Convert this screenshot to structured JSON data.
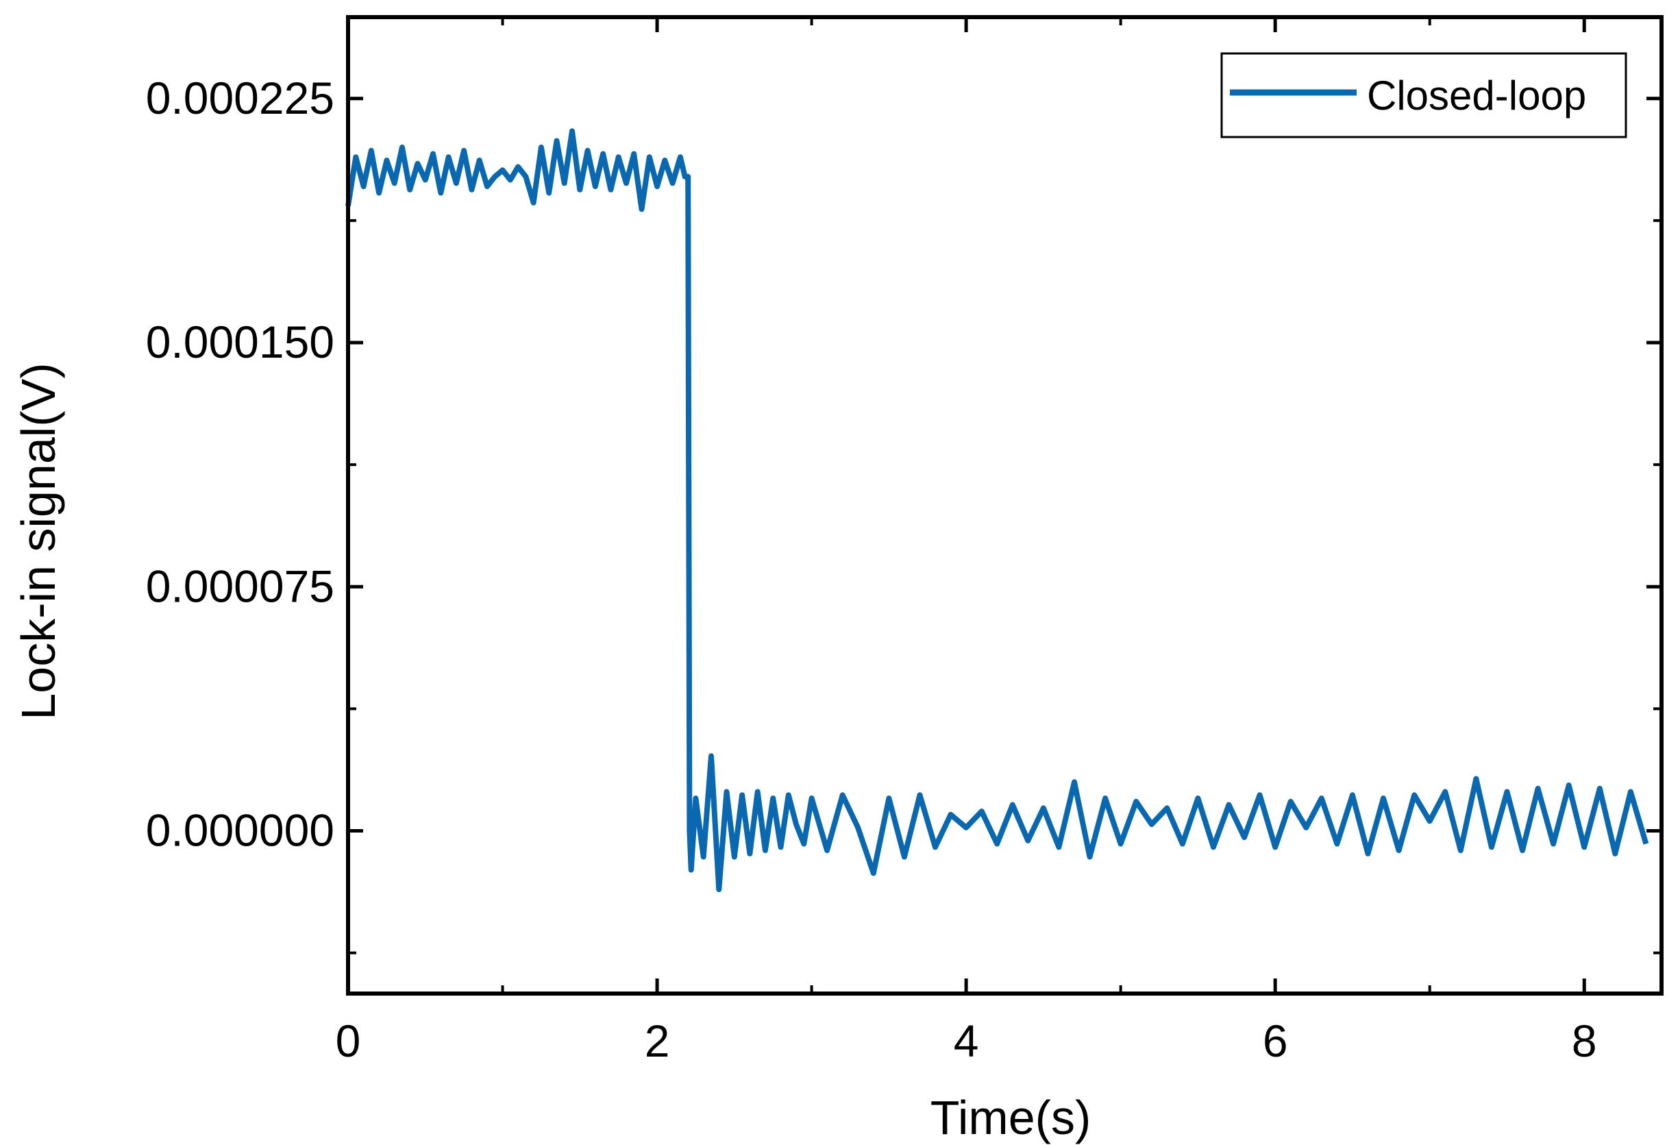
{
  "chart_data": {
    "type": "line",
    "xlabel": "Time(s)",
    "ylabel": "Lock-in signal(V)",
    "xlim": [
      0,
      8.5
    ],
    "ylim": [
      -5e-05,
      0.00025
    ],
    "x_ticks": [
      0,
      2,
      4,
      6,
      8
    ],
    "x_tick_labels": [
      "0",
      "2",
      "4",
      "6",
      "8"
    ],
    "y_ticks": [
      0.0,
      7.5e-05,
      0.00015,
      0.000225
    ],
    "y_tick_labels": [
      "0.000000",
      "0.000075",
      "0.000150",
      "0.000225"
    ],
    "grid": false,
    "legend_position": "top-right",
    "series": [
      {
        "name": "Closed-loop",
        "color": "#0a68b0",
        "x": [
          0,
          0.05,
          0.1,
          0.15,
          0.2,
          0.25,
          0.3,
          0.35,
          0.4,
          0.45,
          0.5,
          0.55,
          0.6,
          0.65,
          0.7,
          0.75,
          0.8,
          0.85,
          0.9,
          0.95,
          1.0,
          1.05,
          1.1,
          1.15,
          1.2,
          1.25,
          1.3,
          1.35,
          1.4,
          1.45,
          1.5,
          1.55,
          1.6,
          1.65,
          1.7,
          1.75,
          1.8,
          1.85,
          1.9,
          1.95,
          2.0,
          2.05,
          2.1,
          2.15,
          2.18,
          2.19,
          2.2,
          2.21,
          2.22,
          2.25,
          2.3,
          2.35,
          2.4,
          2.45,
          2.5,
          2.55,
          2.6,
          2.65,
          2.7,
          2.75,
          2.8,
          2.85,
          2.9,
          2.95,
          3.0,
          3.1,
          3.2,
          3.3,
          3.4,
          3.5,
          3.6,
          3.7,
          3.8,
          3.9,
          4.0,
          4.1,
          4.2,
          4.3,
          4.4,
          4.5,
          4.6,
          4.7,
          4.8,
          4.9,
          5.0,
          5.1,
          5.2,
          5.3,
          5.4,
          5.5,
          5.6,
          5.7,
          5.8,
          5.9,
          6.0,
          6.1,
          6.2,
          6.3,
          6.4,
          6.5,
          6.6,
          6.7,
          6.8,
          6.9,
          7.0,
          7.1,
          7.2,
          7.3,
          7.4,
          7.5,
          7.6,
          7.7,
          7.8,
          7.9,
          8.0,
          8.1,
          8.2,
          8.3,
          8.4
        ],
        "y": [
          0.000192,
          0.000207,
          0.000198,
          0.000209,
          0.000196,
          0.000206,
          0.000199,
          0.00021,
          0.000197,
          0.000205,
          0.0002,
          0.000208,
          0.000196,
          0.000207,
          0.000199,
          0.000209,
          0.000197,
          0.000206,
          0.000198,
          0.000201,
          0.000203,
          0.0002,
          0.000204,
          0.000201,
          0.000193,
          0.00021,
          0.000196,
          0.000212,
          0.000199,
          0.000215,
          0.000197,
          0.000209,
          0.000198,
          0.000208,
          0.000197,
          0.000207,
          0.000199,
          0.000208,
          0.000191,
          0.000207,
          0.000198,
          0.000206,
          0.000199,
          0.000207,
          0.000201,
          0.000201,
          0.000201,
          0.0,
          -1.2e-05,
          1e-05,
          -8e-06,
          2.3e-05,
          -1.8e-05,
          1.2e-05,
          -8e-06,
          1.1e-05,
          -7e-06,
          1.2e-05,
          -6e-06,
          1e-05,
          -5e-06,
          1.1e-05,
          2e-06,
          -4e-06,
          1e-05,
          -6e-06,
          1.1e-05,
          1e-06,
          -1.3e-05,
          1e-05,
          -8e-06,
          1.1e-05,
          -5e-06,
          5e-06,
          1e-06,
          6e-06,
          -4e-06,
          8e-06,
          -3e-06,
          7e-06,
          -5e-06,
          1.5e-05,
          -8e-06,
          1e-05,
          -4e-06,
          9e-06,
          2e-06,
          7e-06,
          -4e-06,
          1e-05,
          -5e-06,
          8e-06,
          -2e-06,
          1.1e-05,
          -5e-06,
          9e-06,
          1e-06,
          1e-05,
          -4e-06,
          1.1e-05,
          -7e-06,
          1e-05,
          -6e-06,
          1.1e-05,
          3e-06,
          1.2e-05,
          -6e-06,
          1.6e-05,
          -5e-06,
          1.2e-05,
          -6e-06,
          1.3e-05,
          -4e-06,
          1.4e-05,
          -5e-06,
          1.3e-05,
          -7e-06,
          1.2e-05,
          -4e-06
        ]
      }
    ]
  }
}
